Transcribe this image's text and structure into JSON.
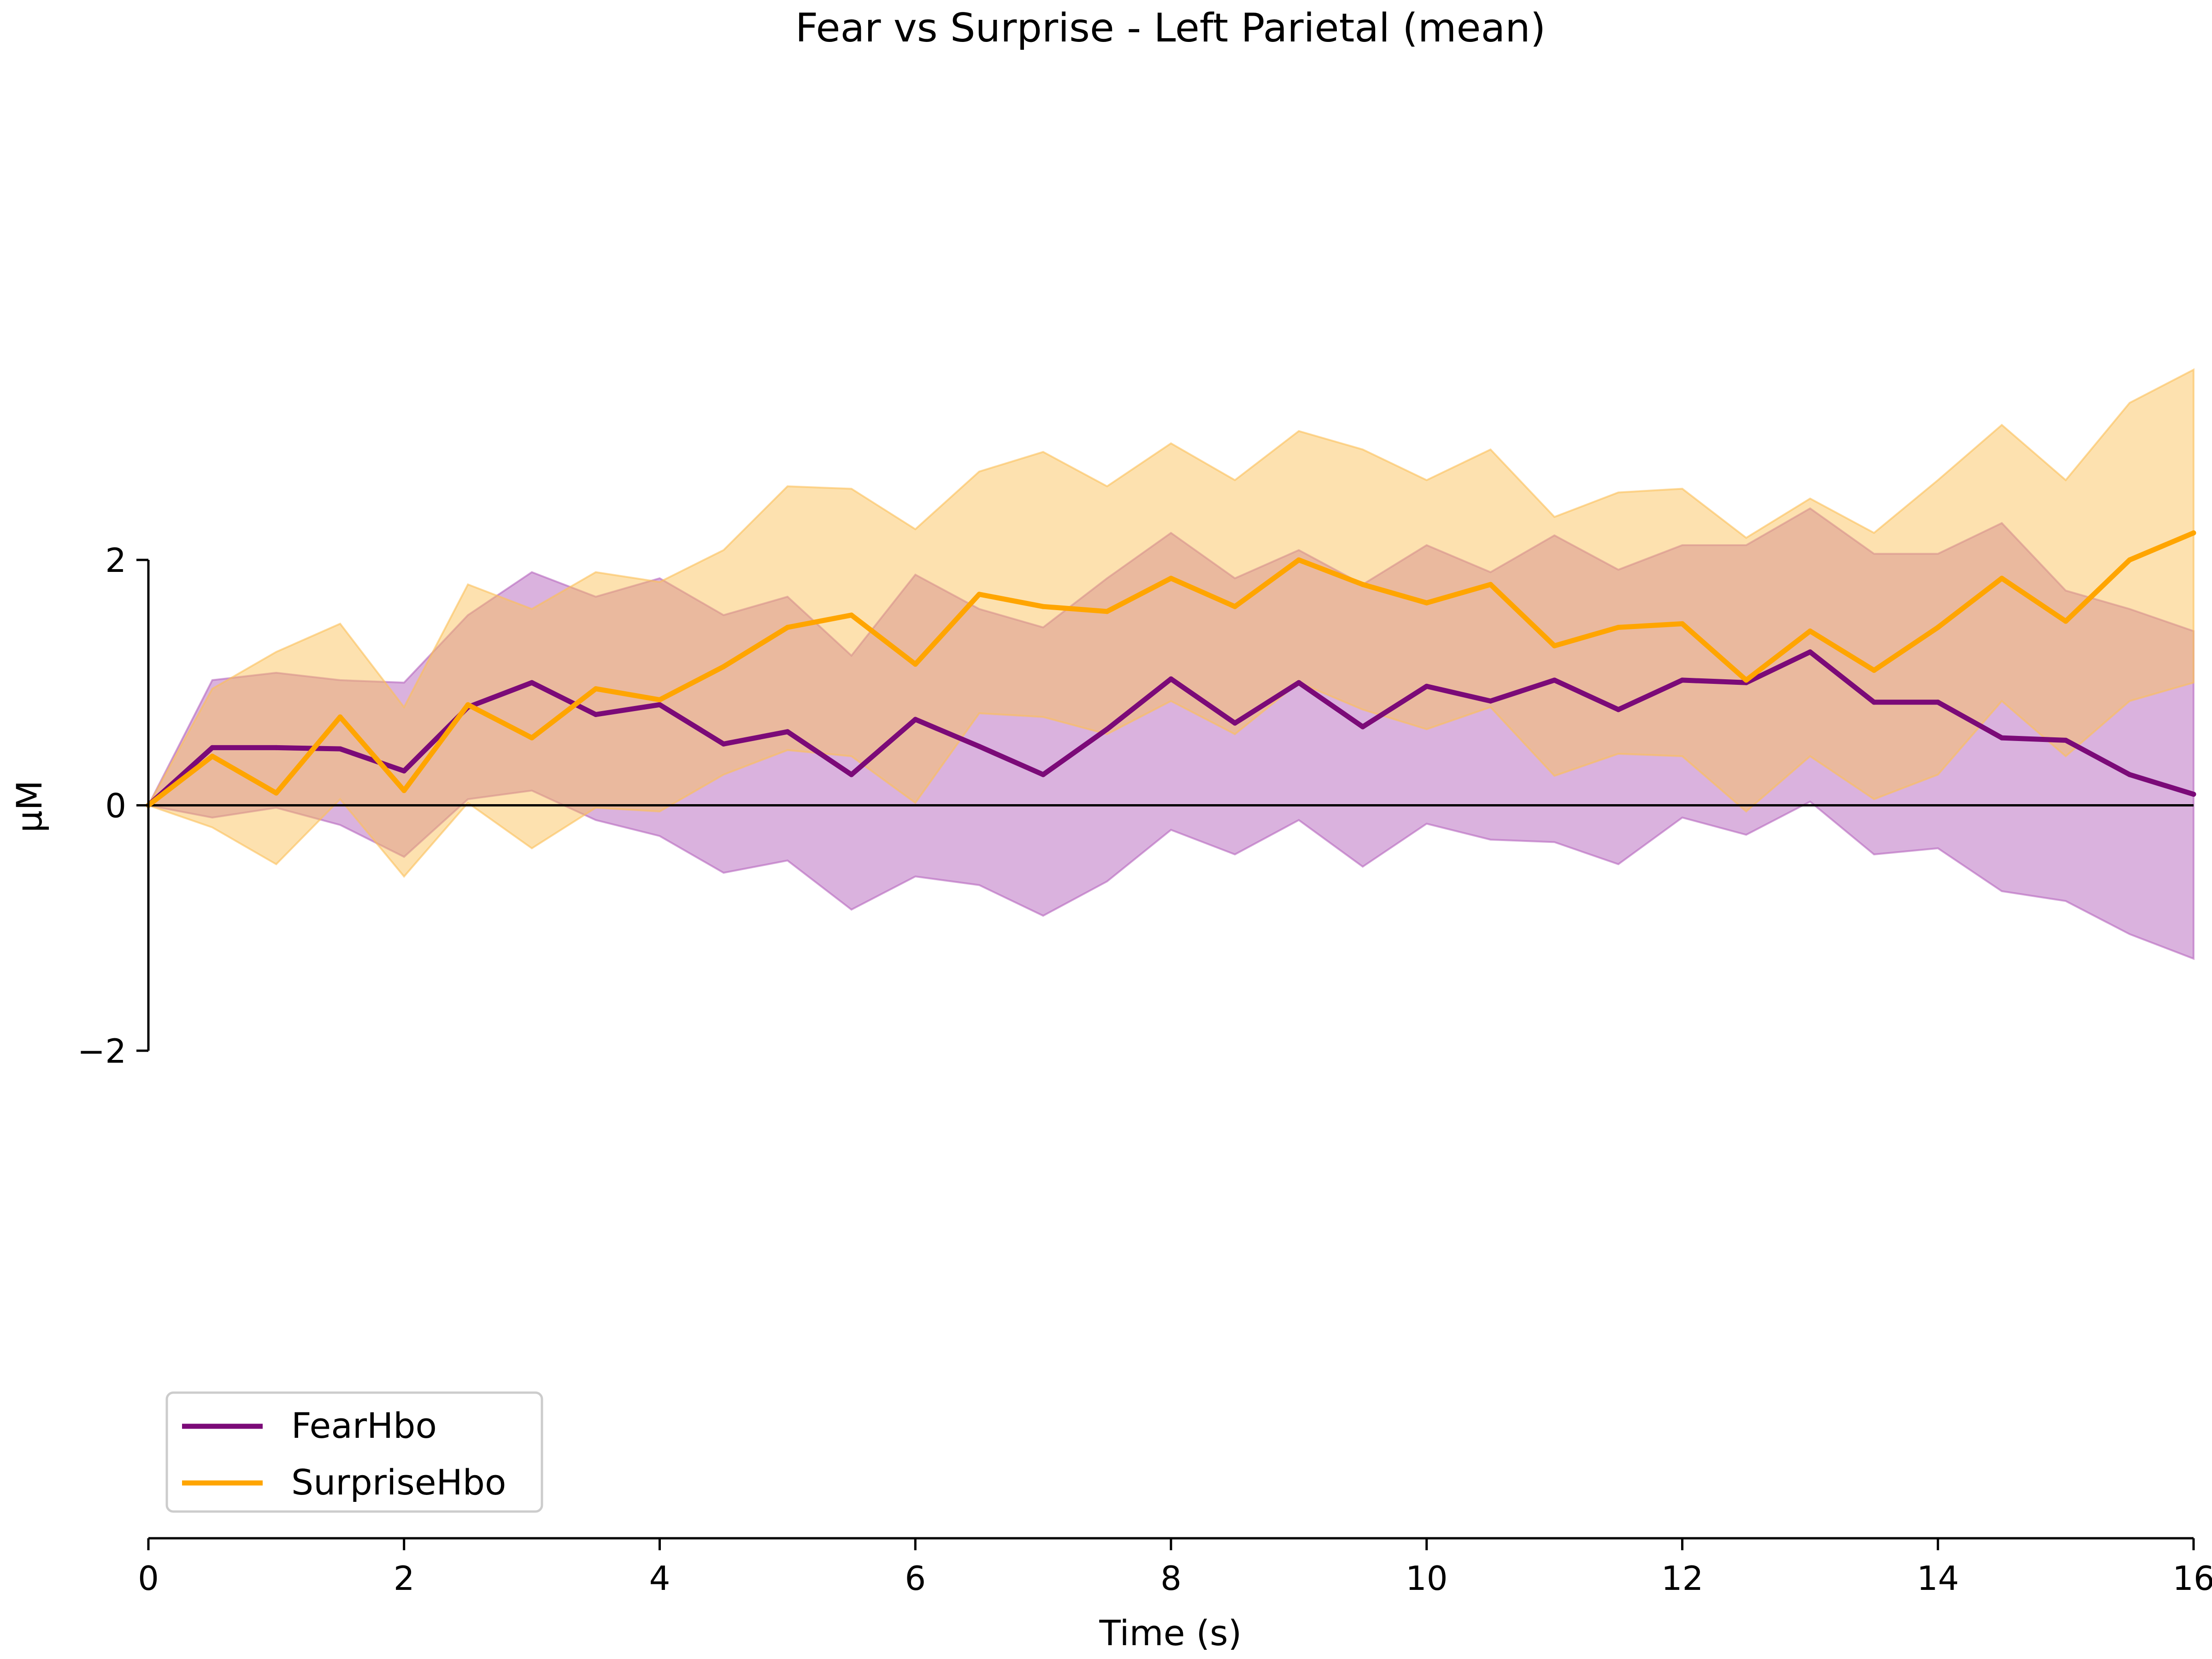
{
  "chart_data": {
    "type": "line",
    "title": "Fear vs Surprise - Left Parietal (mean)",
    "xlabel": "Time (s)",
    "ylabel": "μM",
    "xlim": [
      0,
      16
    ],
    "ylim": [
      -2,
      2
    ],
    "x_ticks": [
      0,
      2,
      4,
      6,
      8,
      10,
      12,
      14,
      16
    ],
    "x_tick_labels": [
      "0",
      "2",
      "4",
      "6",
      "8",
      "10",
      "12",
      "14",
      "16"
    ],
    "y_ticks": [
      -2,
      0,
      2
    ],
    "y_tick_labels": [
      "−2",
      "0",
      "2"
    ],
    "grid": false,
    "legend_placement": "lower-left",
    "zero_line": true,
    "x": [
      0,
      0.5,
      1,
      1.5,
      2,
      2.5,
      3,
      3.5,
      4,
      4.5,
      5,
      5.5,
      6,
      6.5,
      7,
      7.5,
      8,
      8.5,
      9,
      9.5,
      10,
      10.5,
      11,
      11.5,
      12,
      12.5,
      13,
      13.5,
      14,
      14.5,
      15,
      15.5,
      16
    ],
    "series": [
      {
        "name": "FearHbo",
        "color": "#7b0a78",
        "band_color": "#b565be",
        "values": [
          0,
          0.47,
          0.47,
          0.46,
          0.28,
          0.8,
          1.0,
          0.74,
          0.82,
          0.5,
          0.6,
          0.25,
          0.7,
          0.48,
          0.25,
          0.62,
          1.03,
          0.67,
          1.0,
          0.64,
          0.97,
          0.85,
          1.02,
          0.78,
          1.02,
          1.0,
          1.25,
          0.84,
          0.84,
          0.55,
          0.53,
          0.25,
          0.09
        ],
        "lower": [
          0,
          -0.1,
          -0.02,
          -0.16,
          -0.42,
          0.05,
          0.12,
          -0.12,
          -0.25,
          -0.55,
          -0.45,
          -0.85,
          -0.58,
          -0.65,
          -0.9,
          -0.62,
          -0.2,
          -0.4,
          -0.12,
          -0.5,
          -0.15,
          -0.28,
          -0.3,
          -0.48,
          -0.1,
          -0.24,
          0.03,
          -0.4,
          -0.35,
          -0.7,
          -0.78,
          -1.05,
          -1.25
        ],
        "upper": [
          0,
          1.02,
          1.08,
          1.02,
          1.0,
          1.55,
          1.9,
          1.7,
          1.85,
          1.55,
          1.7,
          1.22,
          1.88,
          1.6,
          1.45,
          1.85,
          2.22,
          1.85,
          2.08,
          1.8,
          2.12,
          1.9,
          2.2,
          1.92,
          2.12,
          2.12,
          2.42,
          2.05,
          2.05,
          2.3,
          1.75,
          1.6,
          1.42
        ]
      },
      {
        "name": "SurpriseHbo",
        "color": "#ffa500",
        "band_color": "#fbc058",
        "values": [
          0,
          0.4,
          0.1,
          0.72,
          0.12,
          0.82,
          0.55,
          0.95,
          0.86,
          1.13,
          1.45,
          1.55,
          1.15,
          1.72,
          1.62,
          1.58,
          1.85,
          1.62,
          2.0,
          1.8,
          1.65,
          1.8,
          1.3,
          1.45,
          1.48,
          1.02,
          1.42,
          1.1,
          1.45,
          1.85,
          1.5,
          2.0,
          2.22
        ],
        "lower": [
          0,
          -0.18,
          -0.48,
          0.05,
          -0.58,
          0.02,
          -0.35,
          -0.02,
          -0.05,
          0.25,
          0.45,
          0.4,
          0.02,
          0.75,
          0.72,
          0.58,
          0.85,
          0.58,
          1.0,
          0.78,
          0.62,
          0.8,
          0.24,
          0.42,
          0.4,
          -0.05,
          0.4,
          0.05,
          0.25,
          0.85,
          0.4,
          0.85,
          1.0
        ],
        "upper": [
          0,
          0.95,
          1.25,
          1.48,
          0.8,
          1.8,
          1.6,
          1.9,
          1.82,
          2.08,
          2.6,
          2.58,
          2.25,
          2.72,
          2.88,
          2.6,
          2.95,
          2.65,
          3.05,
          2.9,
          2.65,
          2.9,
          2.35,
          2.55,
          2.58,
          2.18,
          2.5,
          2.22,
          2.65,
          3.1,
          2.65,
          3.28,
          3.55
        ]
      }
    ]
  }
}
